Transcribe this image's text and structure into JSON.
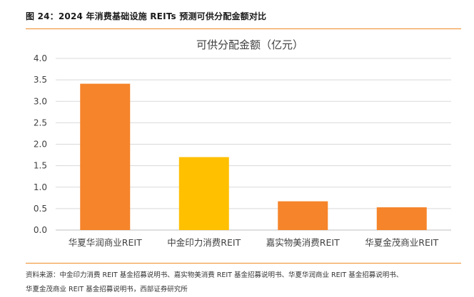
{
  "figure": {
    "caption": "图 24：2024 年消费基础设施 REITs 预测可供分配金额对比",
    "source_line1": "资料来源：中金印力消费 REIT 基金招募说明书、嘉实物美消费 REIT 基金招募说明书、华夏华润商业 REIT 基金招募说明书、",
    "source_line2": "华夏金茂商业 REIT 基金招募说明书，西部证券研究所"
  },
  "chart_data": {
    "type": "bar",
    "title": "可供分配金额（亿元）",
    "categories": [
      "华夏华润商业REIT",
      "中金印力消费REIT",
      "嘉实物美消费REIT",
      "华夏金茂商业REIT"
    ],
    "values": [
      3.41,
      1.7,
      0.67,
      0.53
    ],
    "bar_colors": [
      "#f5842a",
      "#ffc000",
      "#f5842a",
      "#f5842a"
    ],
    "ylim": [
      0,
      4.0
    ],
    "yticks": [
      "0.0",
      "0.5",
      "1.0",
      "1.5",
      "2.0",
      "2.5",
      "3.0",
      "3.5",
      "4.0"
    ],
    "grid": true,
    "xlabel": "",
    "ylabel": ""
  }
}
